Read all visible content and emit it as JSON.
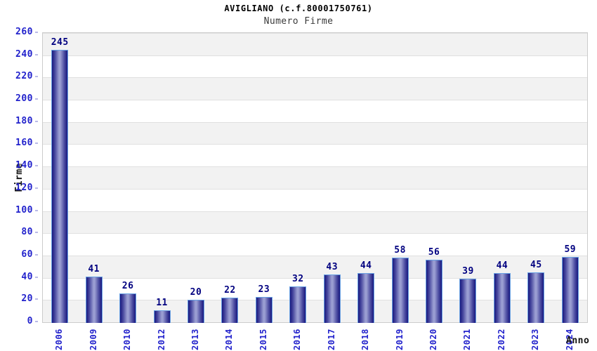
{
  "header": {
    "title": "AVIGLIANO (c.f.80001750761)",
    "subtitle": "Numero Firme"
  },
  "chart_data": {
    "type": "bar",
    "title": "AVIGLIANO (c.f.80001750761)",
    "subtitle": "Numero Firme",
    "xlabel": "Anno",
    "ylabel": "Firme",
    "categories": [
      "2006",
      "2009",
      "2010",
      "2012",
      "2013",
      "2014",
      "2015",
      "2016",
      "2017",
      "2018",
      "2019",
      "2020",
      "2021",
      "2022",
      "2023",
      "2024"
    ],
    "values": [
      245,
      41,
      26,
      11,
      20,
      22,
      23,
      32,
      43,
      44,
      58,
      56,
      39,
      44,
      45,
      59
    ],
    "bar_value_labels": [
      245,
      41,
      26,
      11,
      20,
      22,
      23,
      32,
      43,
      44,
      58,
      56,
      39,
      44,
      45,
      59
    ],
    "ylim": [
      0,
      260
    ],
    "ytick_step": 20,
    "ytick_labels": [
      "0",
      "20",
      "40",
      "60",
      "80",
      "100",
      "120",
      "140",
      "160",
      "180",
      "200",
      "220",
      "240",
      "260"
    ],
    "grid": "horizontal-bands-alternating",
    "legend_position": "none"
  },
  "colors": {
    "title": "#000000",
    "subtitle": "#3a3a3a",
    "axis_tick_label": "#2222cc",
    "bar_value_label": "#000080",
    "bar_edge_dark": "#18187e",
    "bar_mid": "#4b4ba0",
    "bar_center_light": "#9a9ed2",
    "bar_border": "#69a1e3",
    "band_alt": "#f2f2f2",
    "gridline": "#e0e0e0",
    "plot_border": "#cccccc",
    "ytick_mark": "#b9b9e8"
  }
}
